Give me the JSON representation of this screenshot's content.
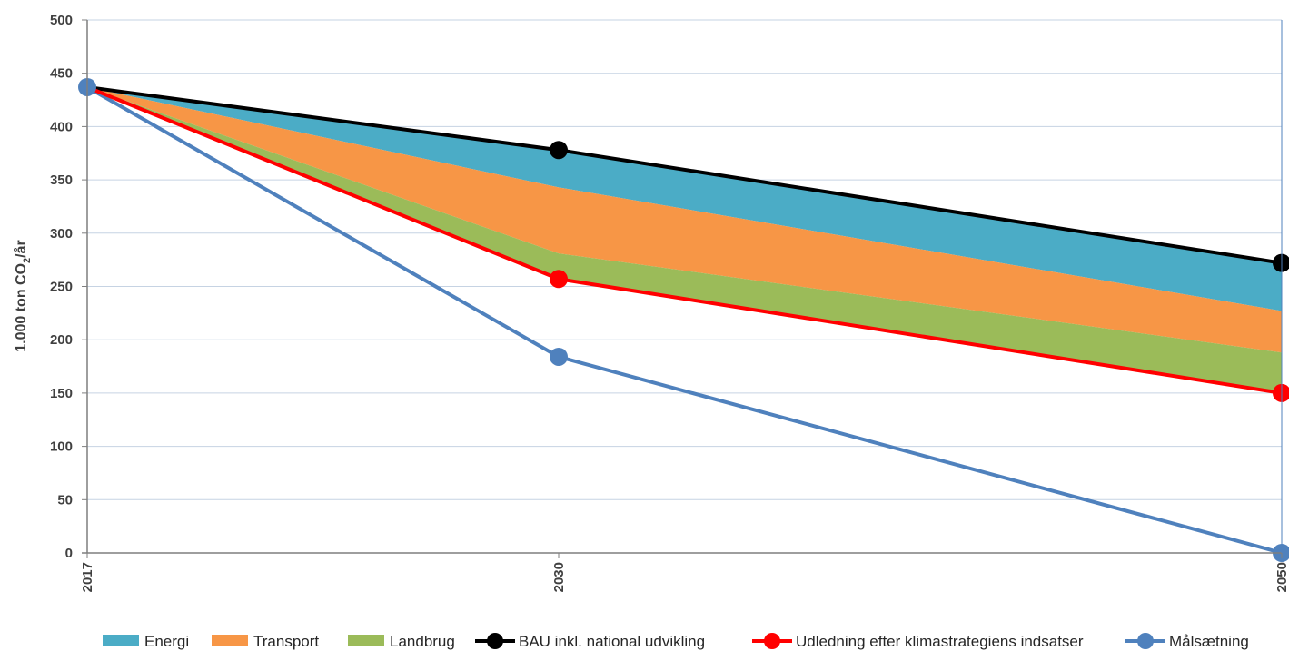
{
  "chart_data": {
    "type": "area",
    "x": [
      "2017",
      "2030",
      "2050"
    ],
    "ylabel": "1.000 ton CO",
    "ylabel_sub": "2",
    "ylabel_suffix": "/år",
    "ylim": [
      0,
      500
    ],
    "yticks": [
      "0",
      "50",
      "100",
      "150",
      "200",
      "250",
      "300",
      "350",
      "400",
      "450",
      "500"
    ],
    "grid": true,
    "legend_position": "bottom",
    "series": [
      {
        "name": "Energi",
        "kind": "area",
        "color": "#4BACC6",
        "lower": [
          437,
          343,
          227
        ],
        "upper": [
          437,
          378,
          272
        ]
      },
      {
        "name": "Transport",
        "kind": "area",
        "color": "#F79646",
        "lower": [
          437,
          281,
          188
        ],
        "upper": [
          437,
          343,
          227
        ]
      },
      {
        "name": "Landbrug",
        "kind": "area",
        "color": "#9BBB59",
        "lower": [
          437,
          257,
          150
        ],
        "upper": [
          437,
          281,
          188
        ]
      },
      {
        "name": "BAU inkl. national udvikling",
        "kind": "line",
        "color": "#000000",
        "values": [
          437,
          378,
          272
        ]
      },
      {
        "name": "Udledning efter klimastrategiens indsatser",
        "kind": "line",
        "color": "#FF0000",
        "values": [
          437,
          257,
          150
        ]
      },
      {
        "name": "Målsætning",
        "kind": "line",
        "color": "#4F81BD",
        "values": [
          437,
          184,
          0
        ]
      }
    ],
    "marker_points": {
      "BAU inkl. national udvikling": [
        false,
        true,
        true
      ],
      "Udledning efter klimastrategiens indsatser": [
        false,
        true,
        true
      ],
      "Målsætning": [
        true,
        true,
        true
      ]
    }
  }
}
